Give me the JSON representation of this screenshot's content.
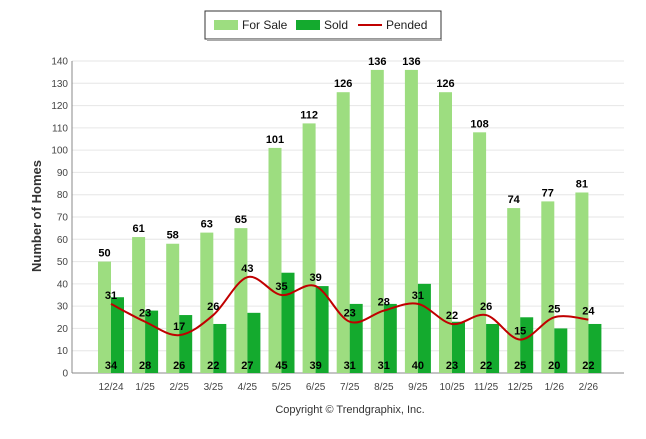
{
  "chart_data": {
    "type": "bar",
    "ylabel": "Number of Homes",
    "ylim": [
      0,
      140
    ],
    "yticks": [
      0,
      10,
      20,
      30,
      40,
      50,
      60,
      70,
      80,
      90,
      100,
      110,
      120,
      130,
      140
    ],
    "grid": true,
    "legend_position": "top-center",
    "categories": [
      "12/24",
      "1/25",
      "2/25",
      "3/25",
      "4/25",
      "5/25",
      "6/25",
      "7/25",
      "8/25",
      "9/25",
      "10/25",
      "11/25",
      "12/25",
      "1/26",
      "2/26"
    ],
    "series": [
      {
        "name": "For Sale",
        "type": "bar",
        "color": "#9ddd80",
        "values": [
          50,
          61,
          58,
          63,
          65,
          101,
          112,
          126,
          136,
          136,
          126,
          108,
          74,
          77,
          81
        ]
      },
      {
        "name": "Sold",
        "type": "bar",
        "color": "#14aa2e",
        "values": [
          34,
          28,
          26,
          22,
          27,
          45,
          39,
          31,
          31,
          40,
          23,
          22,
          25,
          20,
          22
        ]
      },
      {
        "name": "Pended",
        "type": "line",
        "color": "#c00000",
        "values": [
          31,
          23,
          17,
          26,
          43,
          35,
          39,
          23,
          28,
          31,
          22,
          26,
          15,
          25,
          24
        ]
      }
    ]
  },
  "footer": {
    "copyright": "Copyright © Trendgraphix, Inc."
  }
}
